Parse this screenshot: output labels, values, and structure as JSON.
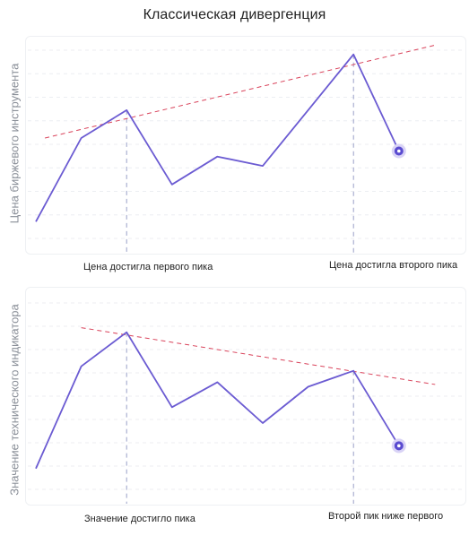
{
  "title": "Классическая дивергенция",
  "chart_data": [
    {
      "type": "line",
      "ylabel": "Цена биржевого инструмента",
      "x": [
        0,
        1,
        2,
        3,
        4,
        5,
        6,
        7,
        8
      ],
      "series": [
        {
          "values": [
            1.0,
            5.5,
            7.0,
            3.0,
            4.5,
            4.0,
            7.0,
            10.0,
            4.8
          ]
        }
      ],
      "trendline": {
        "x": [
          0.2,
          8.8
        ],
        "values": [
          5.5,
          10.5
        ]
      },
      "peaks": [
        2,
        7
      ],
      "annotations": [
        "Цена достигла первого пика",
        "Цена достигла второго пика"
      ],
      "ylim": [
        0,
        11
      ],
      "grid": true,
      "colors": {
        "line": "#6b5bd2",
        "trendline": "#d9435b",
        "marker": "#5a4bd0",
        "peak_guide": "#9aa0c8",
        "grid": "#eceef2"
      }
    },
    {
      "type": "line",
      "ylabel": "Значение технического индикатора",
      "x": [
        0,
        1,
        2,
        3,
        4,
        5,
        6,
        7,
        8
      ],
      "series": [
        {
          "values": [
            1.0,
            5.5,
            7.0,
            3.7,
            4.8,
            3.0,
            4.6,
            5.3,
            2.0
          ]
        }
      ],
      "trendline": {
        "x": [
          1.0,
          8.8
        ],
        "values": [
          7.2,
          4.7
        ]
      },
      "peaks": [
        2,
        7
      ],
      "annotations": [
        "Значение достигло пика",
        "Второй пик ниже первого"
      ],
      "ylim": [
        0,
        9
      ],
      "grid": true,
      "colors": {
        "line": "#6b5bd2",
        "trendline": "#d9435b",
        "marker": "#5a4bd0",
        "peak_guide": "#9aa0c8",
        "grid": "#eceef2"
      }
    }
  ]
}
